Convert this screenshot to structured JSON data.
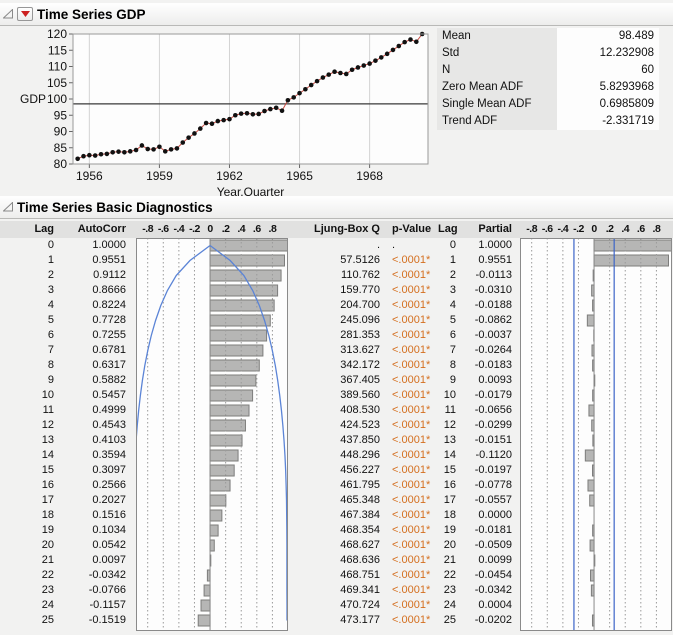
{
  "colors": {
    "p_value_orange": "#d46f1f",
    "bar_fill": "#b6b6b5",
    "bar_stroke": "#7d7d7c",
    "curve_blue": "#5b84d6",
    "conf_line_blue": "#3c64c8",
    "series_line_red": "#c94b42",
    "point_black": "#111111",
    "mean_line": "#3a3a3a",
    "gridline": "#d4d4d4",
    "red_triangle": "#cc2020"
  },
  "gdp_section": {
    "title": "Time Series GDP",
    "disclosure_icon": "open-triangle",
    "menu_icon": "red-triangle-menu",
    "stats": [
      {
        "label": "Mean",
        "value": "98.489"
      },
      {
        "label": "Std",
        "value": "12.232908"
      },
      {
        "label": "N",
        "value": "60"
      },
      {
        "label": "Zero Mean ADF",
        "value": "5.8293968"
      },
      {
        "label": "Single Mean ADF",
        "value": "0.6985809"
      },
      {
        "label": "Trend ADF",
        "value": "-2.331719"
      }
    ],
    "chart_data": {
      "type": "scatter",
      "title": "",
      "xlabel": "Year.Quarter",
      "ylabel": "GDP",
      "xlim": [
        1955.3,
        1970.5
      ],
      "ylim": [
        80,
        120
      ],
      "x_ticks": [
        1956,
        1959,
        1962,
        1965,
        1968
      ],
      "y_ticks": [
        80,
        85,
        90,
        95,
        100,
        105,
        110,
        115,
        120
      ],
      "mean_line": 98.489,
      "x_start": 1955.5,
      "x_step": 0.25,
      "values": [
        81.6,
        82.4,
        82.7,
        82.6,
        83.0,
        83.1,
        83.6,
        83.8,
        83.6,
        83.9,
        84.3,
        85.7,
        84.6,
        84.5,
        85.3,
        83.9,
        84.5,
        84.8,
        86.6,
        88.1,
        89.4,
        90.9,
        92.6,
        92.4,
        93.2,
        93.5,
        93.8,
        95.0,
        95.5,
        95.6,
        95.3,
        95.4,
        96.3,
        96.9,
        97.3,
        96.4,
        99.6,
        100.5,
        101.8,
        103.0,
        104.3,
        105.5,
        106.6,
        107.5,
        108.4,
        108.0,
        107.7,
        109.0,
        109.7,
        110.3,
        110.9,
        111.8,
        112.8,
        113.9,
        115.1,
        116.3,
        117.5,
        118.3,
        117.6,
        120.0
      ]
    }
  },
  "diagnostics_section": {
    "title": "Time Series Basic Diagnostics",
    "disclosure_icon": "open-triangle",
    "columns": [
      "Lag",
      "AutoCorr",
      "-.8-.6-.4-.2 0 .2 .4 .6 .8",
      "Ljung-Box Q",
      "p-Value",
      "Lag",
      "Partial",
      "-.8-.6-.4-.2 0 .2 .4 .6 .8"
    ],
    "axis_labels": [
      {
        "text": "-.8",
        "v": -0.8
      },
      {
        "text": "-.6",
        "v": -0.6
      },
      {
        "text": "-.4",
        "v": -0.4
      },
      {
        "text": "-.2",
        "v": -0.2
      },
      {
        "text": "0",
        "v": 0
      },
      {
        "text": ".2",
        "v": 0.2
      },
      {
        "text": ".4",
        "v": 0.4
      },
      {
        "text": ".6",
        "v": 0.6
      },
      {
        "text": ".8",
        "v": 0.8
      }
    ],
    "chart_xlim": [
      -0.95,
      1.0
    ],
    "autocorr_confidence_2se": [
      0,
      0.258,
      0.434,
      0.547,
      0.632,
      0.699,
      0.754,
      0.799,
      0.837,
      0.868,
      0.894,
      0.916,
      0.934,
      0.949,
      0.961,
      0.97,
      0.976,
      0.981,
      0.983,
      0.985,
      0.986,
      0.986,
      0.986,
      0.986,
      0.987,
      0.987
    ],
    "partial_confidence_limits": [
      -0.258,
      0.258
    ],
    "rows": [
      {
        "lag": "0",
        "autocorr": "1.0000",
        "ljung": ".",
        "p": ".",
        "partial": "1.0000"
      },
      {
        "lag": "1",
        "autocorr": "0.9551",
        "ljung": "57.5126",
        "p": "<.0001*",
        "partial": "0.9551"
      },
      {
        "lag": "2",
        "autocorr": "0.9112",
        "ljung": "110.762",
        "p": "<.0001*",
        "partial": "-0.0113"
      },
      {
        "lag": "3",
        "autocorr": "0.8666",
        "ljung": "159.770",
        "p": "<.0001*",
        "partial": "-0.0310"
      },
      {
        "lag": "4",
        "autocorr": "0.8224",
        "ljung": "204.700",
        "p": "<.0001*",
        "partial": "-0.0188"
      },
      {
        "lag": "5",
        "autocorr": "0.7728",
        "ljung": "245.096",
        "p": "<.0001*",
        "partial": "-0.0862"
      },
      {
        "lag": "6",
        "autocorr": "0.7255",
        "ljung": "281.353",
        "p": "<.0001*",
        "partial": "-0.0037"
      },
      {
        "lag": "7",
        "autocorr": "0.6781",
        "ljung": "313.627",
        "p": "<.0001*",
        "partial": "-0.0264"
      },
      {
        "lag": "8",
        "autocorr": "0.6317",
        "ljung": "342.172",
        "p": "<.0001*",
        "partial": "-0.0183"
      },
      {
        "lag": "9",
        "autocorr": "0.5882",
        "ljung": "367.405",
        "p": "<.0001*",
        "partial": "0.0093"
      },
      {
        "lag": "10",
        "autocorr": "0.5457",
        "ljung": "389.560",
        "p": "<.0001*",
        "partial": "-0.0179"
      },
      {
        "lag": "11",
        "autocorr": "0.4999",
        "ljung": "408.530",
        "p": "<.0001*",
        "partial": "-0.0656"
      },
      {
        "lag": "12",
        "autocorr": "0.4543",
        "ljung": "424.523",
        "p": "<.0001*",
        "partial": "-0.0299"
      },
      {
        "lag": "13",
        "autocorr": "0.4103",
        "ljung": "437.850",
        "p": "<.0001*",
        "partial": "-0.0151"
      },
      {
        "lag": "14",
        "autocorr": "0.3594",
        "ljung": "448.296",
        "p": "<.0001*",
        "partial": "-0.1120"
      },
      {
        "lag": "15",
        "autocorr": "0.3097",
        "ljung": "456.227",
        "p": "<.0001*",
        "partial": "-0.0197"
      },
      {
        "lag": "16",
        "autocorr": "0.2566",
        "ljung": "461.795",
        "p": "<.0001*",
        "partial": "-0.0778"
      },
      {
        "lag": "17",
        "autocorr": "0.2027",
        "ljung": "465.348",
        "p": "<.0001*",
        "partial": "-0.0557"
      },
      {
        "lag": "18",
        "autocorr": "0.1516",
        "ljung": "467.384",
        "p": "<.0001*",
        "partial": "0.0000"
      },
      {
        "lag": "19",
        "autocorr": "0.1034",
        "ljung": "468.354",
        "p": "<.0001*",
        "partial": "-0.0181"
      },
      {
        "lag": "20",
        "autocorr": "0.0542",
        "ljung": "468.627",
        "p": "<.0001*",
        "partial": "-0.0509"
      },
      {
        "lag": "21",
        "autocorr": "0.0097",
        "ljung": "468.636",
        "p": "<.0001*",
        "partial": "0.0099"
      },
      {
        "lag": "22",
        "autocorr": "-0.0342",
        "ljung": "468.751",
        "p": "<.0001*",
        "partial": "-0.0454"
      },
      {
        "lag": "23",
        "autocorr": "-0.0766",
        "ljung": "469.341",
        "p": "<.0001*",
        "partial": "-0.0342"
      },
      {
        "lag": "24",
        "autocorr": "-0.1157",
        "ljung": "470.724",
        "p": "<.0001*",
        "partial": "0.0004"
      },
      {
        "lag": "25",
        "autocorr": "-0.1519",
        "ljung": "473.177",
        "p": "<.0001*",
        "partial": "-0.0202"
      }
    ]
  }
}
